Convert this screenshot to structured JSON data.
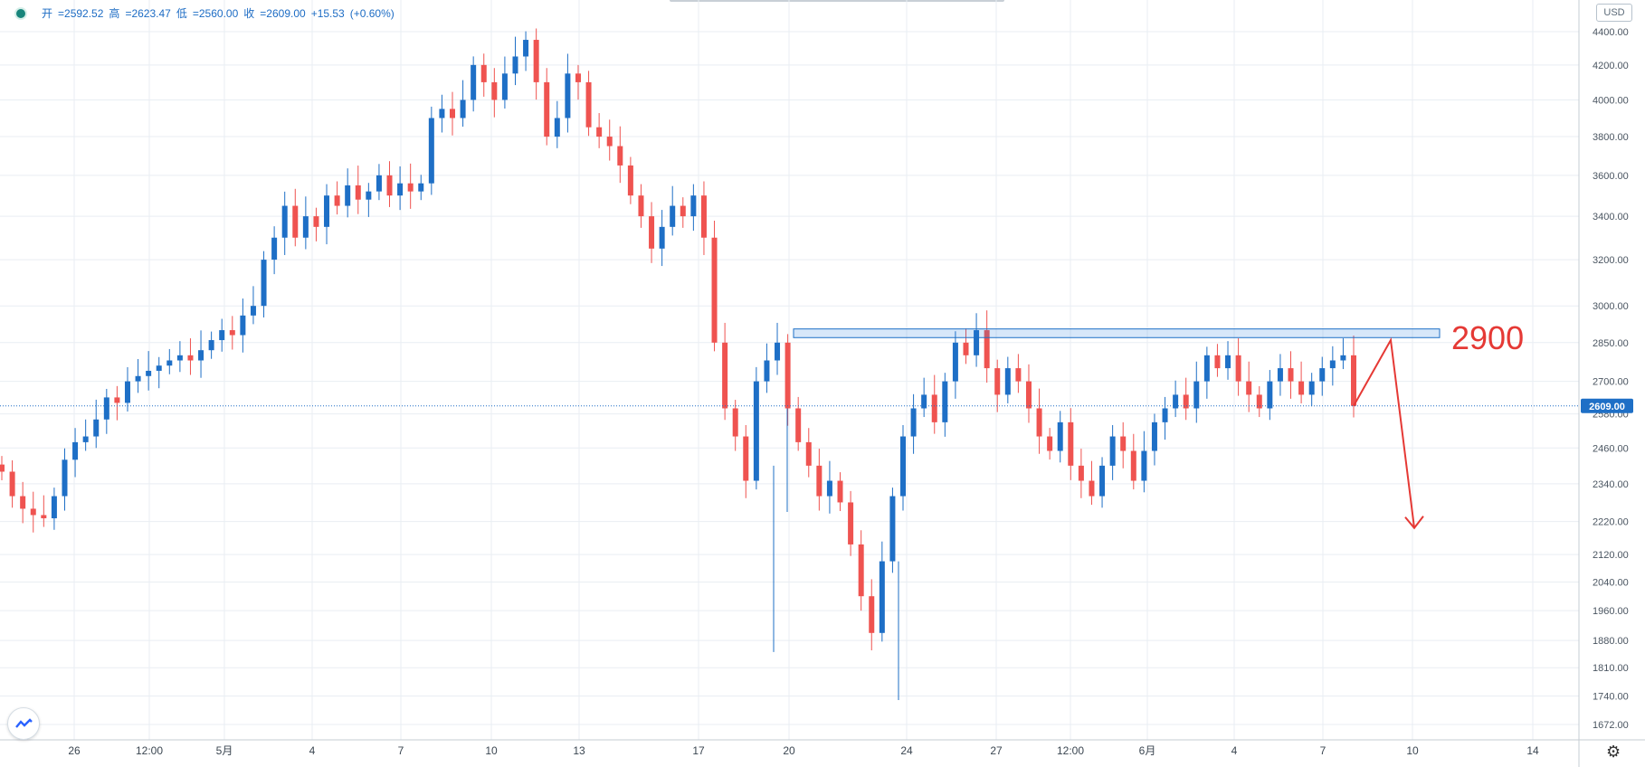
{
  "header": {
    "open_label": "开",
    "open": "2592.52",
    "high_label": "高",
    "high": "2623.47",
    "low_label": "低",
    "low": "2560.00",
    "close_label": "收",
    "close": "2609.00",
    "change": "+15.53",
    "change_pct": "(+0.60%)"
  },
  "currency_button": "USD",
  "price_tag": "2609.00",
  "annotation_level_label": "2900",
  "colors": {
    "up": "#1e6fc6",
    "down": "#ef5350",
    "annotation": "#e53935",
    "grid": "#e9eef3"
  },
  "icons": {
    "logo": "tradingview-logo-icon",
    "settings": "gear-icon"
  },
  "chart_data": {
    "type": "candlestick",
    "y_axis_scale": "log",
    "y_ticks": [
      4400,
      4200,
      4000,
      3800,
      3600,
      3400,
      3200,
      3000,
      2850,
      2700,
      2580,
      2460,
      2340,
      2220,
      2120,
      2040,
      1960,
      1880,
      1810,
      1740,
      1672
    ],
    "x_ticks": [
      "26",
      "12:00",
      "5月",
      "4",
      "7",
      "10",
      "13",
      "17",
      "20",
      "24",
      "27",
      "12:00",
      "6月",
      "4",
      "7",
      "10",
      "14"
    ],
    "last_price": 2609.0,
    "resistance_zone": [
      2870,
      2905
    ],
    "resistance_label": "2900",
    "projection_points": [
      [
        2609,
        2609
      ],
      [
        2860
      ],
      [
        2200
      ]
    ],
    "approx_closes": [
      2380,
      2300,
      2260,
      2240,
      2230,
      2300,
      2420,
      2480,
      2500,
      2560,
      2640,
      2620,
      2700,
      2720,
      2740,
      2760,
      2780,
      2800,
      2780,
      2820,
      2860,
      2900,
      2880,
      2960,
      3000,
      3200,
      3300,
      3450,
      3300,
      3400,
      3350,
      3500,
      3450,
      3550,
      3480,
      3520,
      3600,
      3500,
      3560,
      3520,
      3560,
      3900,
      3950,
      3900,
      4000,
      4200,
      4100,
      4000,
      4150,
      4250,
      4350,
      4100,
      3800,
      3900,
      4150,
      4100,
      3850,
      3800,
      3750,
      3650,
      3500,
      3400,
      3250,
      3350,
      3450,
      3400,
      3500,
      3300,
      2850,
      2600,
      2500,
      2350,
      2700,
      2780,
      2850,
      2600,
      2480,
      2400,
      2300,
      2350,
      2280,
      2150,
      2000,
      1900,
      2100,
      2300,
      2500,
      2600,
      2650,
      2550,
      2700,
      2850,
      2800,
      2900,
      2750,
      2650,
      2750,
      2700,
      2600,
      2500,
      2450,
      2550,
      2400,
      2350,
      2300,
      2400,
      2500,
      2450,
      2350,
      2450,
      2550,
      2600,
      2650,
      2600,
      2700,
      2800,
      2750,
      2800,
      2700,
      2650,
      2600,
      2700,
      2750,
      2700,
      2650,
      2700,
      2750,
      2780,
      2800,
      2609
    ]
  }
}
